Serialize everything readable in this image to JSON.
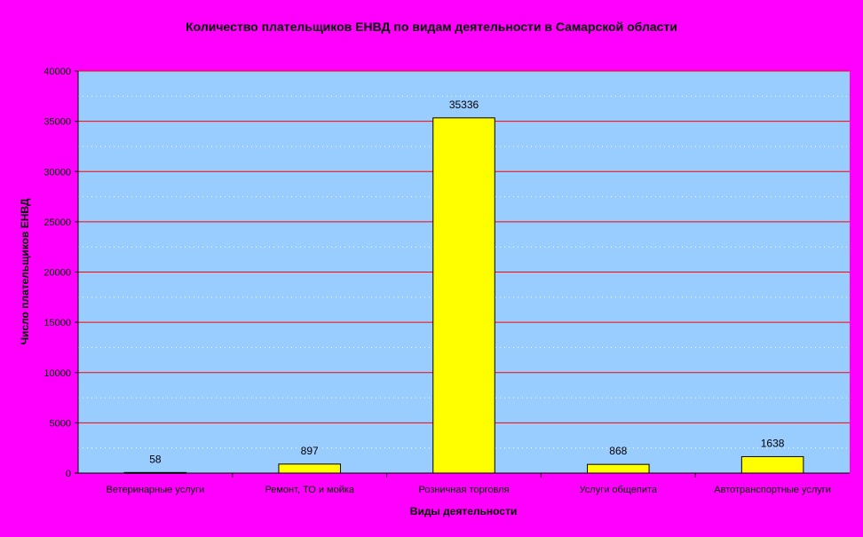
{
  "chart_data": {
    "type": "bar",
    "title": "Количество плательщиков ЕНВД по видам деятельности в Самарской области",
    "xlabel": "Виды деятельности",
    "ylabel": "Число плательщиков ЕНВД",
    "categories": [
      "Ветеринарные услуги",
      "Ремонт, ТО и мойка",
      "Розничная торговля",
      "Услуги общепита",
      "Автотранспортные услуги"
    ],
    "values": [
      58,
      897,
      35336,
      868,
      1638
    ],
    "ylim": [
      0,
      40000
    ],
    "yticks": [
      0,
      5000,
      10000,
      15000,
      20000,
      25000,
      30000,
      35000,
      40000
    ],
    "grid": true,
    "legend": "none",
    "colors": {
      "page_background": "#FF00FF",
      "plot_background": "#99CCFF",
      "bar_fill": "#FFFF00",
      "bar_stroke": "#000000",
      "major_grid": "#FF0000",
      "minor_grid": "#FFFFFF"
    }
  }
}
